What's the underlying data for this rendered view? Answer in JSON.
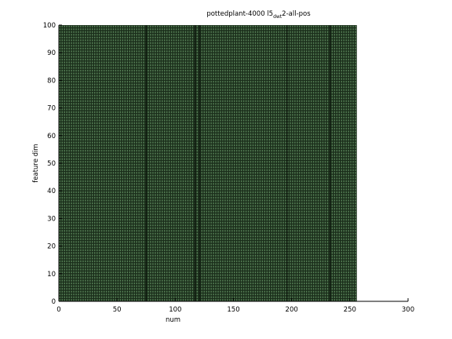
{
  "chart_data": {
    "type": "heatmap",
    "title": {
      "prefix": "pottedplant-4000 l5",
      "subscript": "dwt",
      "suffix": "2-all-pos"
    },
    "xlabel": "num",
    "ylabel": "feature dim",
    "xlim": [
      0,
      300
    ],
    "ylim": [
      0,
      100
    ],
    "xticks": [
      0,
      50,
      100,
      150,
      200,
      250,
      300
    ],
    "yticks": [
      0,
      10,
      20,
      30,
      40,
      50,
      60,
      70,
      80,
      90,
      100
    ],
    "grid": false,
    "legend": "none",
    "data_extent": {
      "x": [
        0,
        256
      ],
      "y": [
        0,
        100
      ]
    },
    "cell_step": {
      "x": 1,
      "y": 1
    },
    "dark_columns_x": [
      75,
      117,
      121,
      196,
      233
    ],
    "colors": {
      "background": "#1a2d1a",
      "cell": "#5e8a5e",
      "dark_column": "#0a140a",
      "axis": "#000000"
    },
    "description_values": "dense dot-grid of feature activations across 256 samples x 100 feature dimensions"
  }
}
